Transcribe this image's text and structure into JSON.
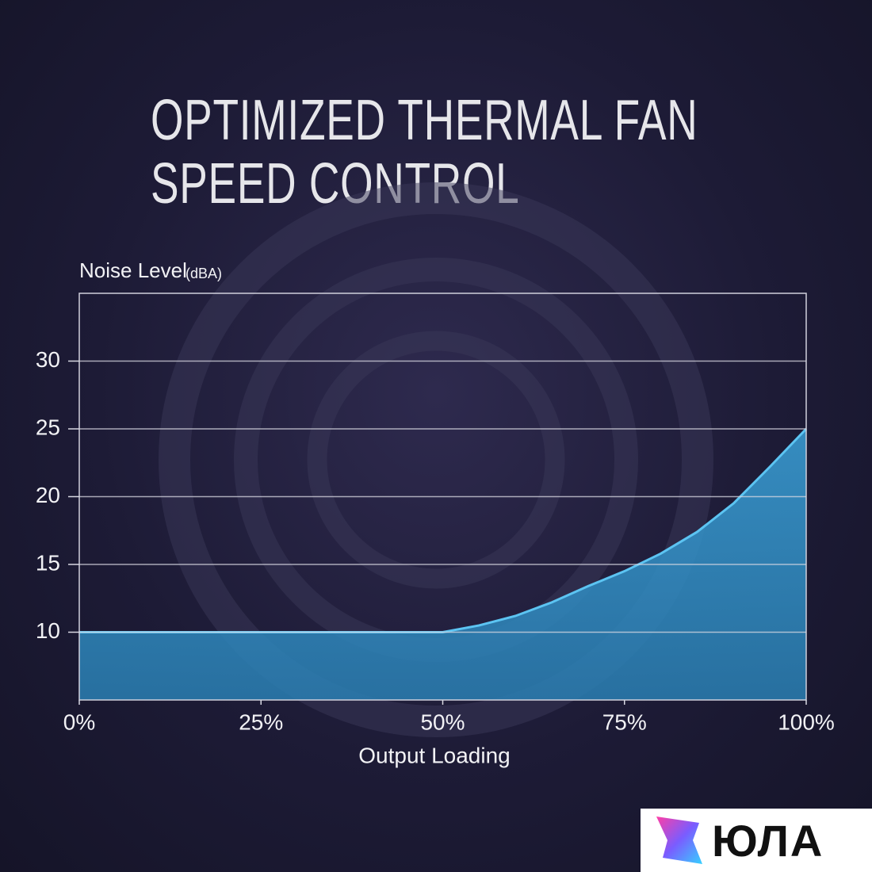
{
  "chart_data": {
    "type": "area",
    "title": "OPTIMIZED THERMAL FAN SPEED CONTROL",
    "y_label": "Noise Level",
    "y_unit": "(dBA)",
    "x_label": "Output Loading",
    "x": [
      0,
      10,
      20,
      30,
      40,
      50,
      55,
      60,
      65,
      70,
      75,
      80,
      85,
      90,
      95,
      100
    ],
    "values": [
      10,
      10,
      10,
      10,
      10,
      10,
      10.5,
      11.2,
      12.2,
      13.4,
      14.5,
      15.8,
      17.4,
      19.5,
      22.2,
      25
    ],
    "color": "#3aa0d8",
    "xlim": [
      0,
      100
    ],
    "xticks": [
      {
        "value": 0,
        "label": "0%"
      },
      {
        "value": 25,
        "label": "25%"
      },
      {
        "value": 50,
        "label": "50%"
      },
      {
        "value": 75,
        "label": "75%"
      },
      {
        "value": 100,
        "label": "100%"
      }
    ],
    "ylim": [
      5,
      35
    ],
    "yticks": [
      10,
      15,
      20,
      25,
      30
    ],
    "grid": true
  },
  "watermark": "ЮЛА"
}
